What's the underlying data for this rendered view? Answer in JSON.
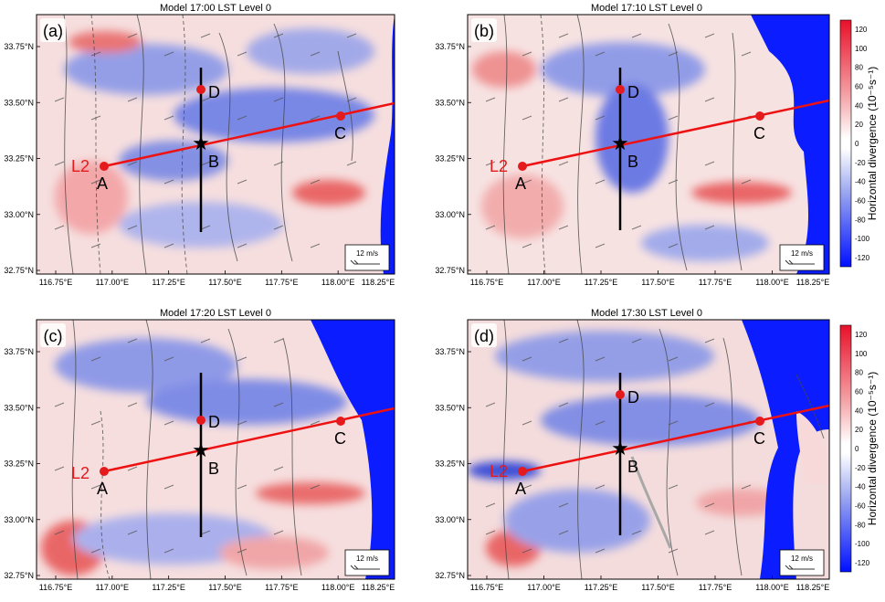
{
  "panels": [
    {
      "label": "(a)",
      "title": "Model 17:00 LST Level 0"
    },
    {
      "label": "(b)",
      "title": "Model 17:10 LST Level 0"
    },
    {
      "label": "(c)",
      "title": "Model 17:20 LST Level 0"
    },
    {
      "label": "(d)",
      "title": "Model 17:30 LST Level 0"
    }
  ],
  "x_ticks": [
    "116.75°E",
    "117.00°E",
    "117.25°E",
    "117.50°E",
    "117.75°E",
    "118.00°E",
    "118.25°E"
  ],
  "y_ticks": [
    "33.75°N",
    "33.50°N",
    "33.25°N",
    "33.00°N",
    "32.75°N"
  ],
  "point_labels": {
    "A": "A",
    "B": "B",
    "C": "C",
    "D": "D",
    "L2": "L2"
  },
  "wind_ref": "12 m/s",
  "colorbar": {
    "label": "Horizontal divergence (10⁻⁵s⁻¹)",
    "ticks": [
      "120",
      "100",
      "80",
      "60",
      "40",
      "20",
      "0",
      "-20",
      "-40",
      "-60",
      "-80",
      "-100",
      "-120"
    ]
  },
  "colors": {
    "convergence": "#2a3fd6",
    "divergence": "#e43a3a",
    "section_line": "#ee1111",
    "points": "#e41a1c"
  }
}
